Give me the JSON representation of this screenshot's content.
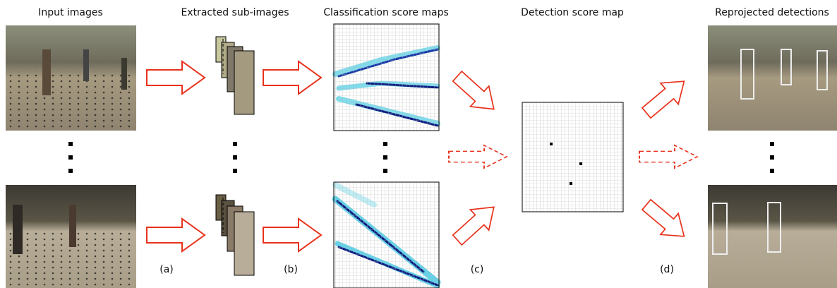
{
  "headers": {
    "input": "Input images",
    "extracted": "Extracted sub-images",
    "classification": "Classification score maps",
    "detection": "Detection score map",
    "reprojected": "Reprojected detections"
  },
  "steps": [
    "(a)",
    "(b)",
    "(c)",
    "(d)"
  ]
}
